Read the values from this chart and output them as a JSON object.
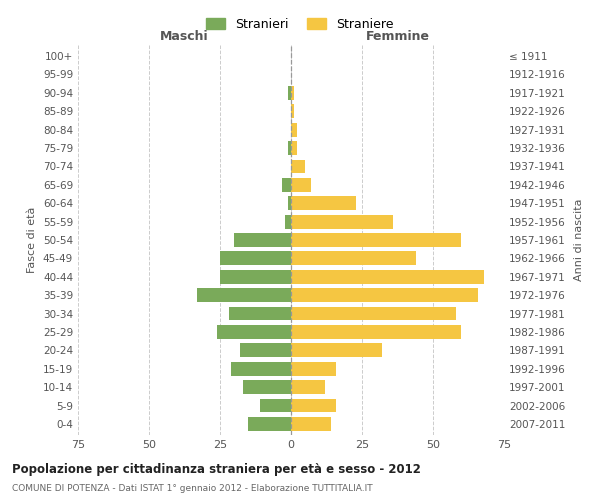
{
  "age_groups": [
    "0-4",
    "5-9",
    "10-14",
    "15-19",
    "20-24",
    "25-29",
    "30-34",
    "35-39",
    "40-44",
    "45-49",
    "50-54",
    "55-59",
    "60-64",
    "65-69",
    "70-74",
    "75-79",
    "80-84",
    "85-89",
    "90-94",
    "95-99",
    "100+"
  ],
  "birth_years": [
    "2007-2011",
    "2002-2006",
    "1997-2001",
    "1992-1996",
    "1987-1991",
    "1982-1986",
    "1977-1981",
    "1972-1976",
    "1967-1971",
    "1962-1966",
    "1957-1961",
    "1952-1956",
    "1947-1951",
    "1942-1946",
    "1937-1941",
    "1932-1936",
    "1927-1931",
    "1922-1926",
    "1917-1921",
    "1912-1916",
    "≤ 1911"
  ],
  "males": [
    15,
    11,
    17,
    21,
    18,
    26,
    22,
    33,
    25,
    25,
    20,
    2,
    1,
    3,
    0,
    1,
    0,
    0,
    1,
    0,
    0
  ],
  "females": [
    14,
    16,
    12,
    16,
    32,
    60,
    58,
    66,
    68,
    44,
    60,
    36,
    23,
    7,
    5,
    2,
    2,
    1,
    1,
    0,
    0
  ],
  "male_color": "#7aaa5a",
  "female_color": "#f5c642",
  "male_label": "Stranieri",
  "female_label": "Straniere",
  "title": "Popolazione per cittadinanza straniera per età e sesso - 2012",
  "subtitle1": "COMUNE DI POTENZA - Dati ISTAT 1° gennaio 2012 - Elaborazione TUTTITALIA.IT",
  "xlabel_left": "Maschi",
  "xlabel_right": "Femmine",
  "ylabel_left": "Fasce di età",
  "ylabel_right": "Anni di nascita",
  "xlim": 75,
  "background_color": "#ffffff",
  "grid_color": "#cccccc"
}
